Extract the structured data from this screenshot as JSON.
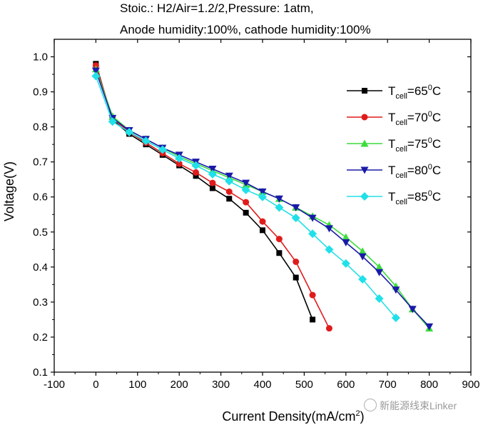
{
  "chart_data": {
    "type": "line",
    "title_lines": [
      "Stoic.: H2/Air=1.2/2,Pressure: 1atm,",
      "Anode humidity:100%, cathode humidity:100%"
    ],
    "xlabel": "Current Density(mA/cm",
    "xlabel_sup": "2",
    "xlabel_end": ")",
    "ylabel": "Voltage(V)",
    "xlim": [
      -100,
      900
    ],
    "ylim": [
      0.1,
      1.05
    ],
    "xticks": [
      -100,
      0,
      100,
      200,
      300,
      400,
      500,
      600,
      700,
      800,
      900
    ],
    "yticks": [
      0.1,
      0.2,
      0.3,
      0.4,
      0.5,
      0.6,
      0.7,
      0.8,
      0.9,
      1.0
    ],
    "ytick_labels": [
      "0.1",
      "0.2",
      "0.3",
      "0.4",
      "0.5",
      "0.6",
      "0.7",
      "0.8",
      "0.9",
      "1.0"
    ],
    "legend_position": "top-right",
    "series": [
      {
        "name": "T_cell=65°C",
        "label_main": "T",
        "label_sub": "cell",
        "label_rest": "=65",
        "label_sup": "0",
        "label_end": "C",
        "color": "#000000",
        "marker": "square",
        "x": [
          0,
          40,
          80,
          120,
          160,
          200,
          240,
          280,
          320,
          360,
          400,
          440,
          480,
          520
        ],
        "y": [
          0.98,
          0.82,
          0.78,
          0.75,
          0.72,
          0.69,
          0.66,
          0.625,
          0.595,
          0.555,
          0.505,
          0.44,
          0.37,
          0.25
        ]
      },
      {
        "name": "T_cell=70°C",
        "label_main": "T",
        "label_sub": "cell",
        "label_rest": "=70",
        "label_sup": "0",
        "label_end": "C",
        "color": "#e01b1b",
        "marker": "circle",
        "x": [
          0,
          40,
          80,
          120,
          160,
          200,
          240,
          280,
          320,
          360,
          400,
          440,
          480,
          520,
          560
        ],
        "y": [
          0.975,
          0.825,
          0.785,
          0.755,
          0.725,
          0.695,
          0.67,
          0.64,
          0.615,
          0.585,
          0.53,
          0.48,
          0.415,
          0.32,
          0.225
        ]
      },
      {
        "name": "T_cell=75°C",
        "label_main": "T",
        "label_sub": "cell",
        "label_rest": "=75",
        "label_sup": "0",
        "label_end": "C",
        "color": "#3cdc3c",
        "marker": "triangle-up",
        "x": [
          0,
          40,
          80,
          120,
          160,
          200,
          240,
          280,
          320,
          360,
          400,
          440,
          480,
          520,
          560,
          600,
          640,
          680,
          720,
          760,
          800
        ],
        "y": [
          0.965,
          0.83,
          0.79,
          0.765,
          0.74,
          0.715,
          0.695,
          0.675,
          0.655,
          0.635,
          0.615,
          0.595,
          0.57,
          0.545,
          0.52,
          0.485,
          0.445,
          0.4,
          0.345,
          0.28,
          0.225
        ]
      },
      {
        "name": "T_cell=80°C",
        "label_main": "T",
        "label_sub": "cell",
        "label_rest": "=80",
        "label_sup": "0",
        "label_end": "C",
        "color": "#1a1aa8",
        "marker": "triangle-down",
        "x": [
          0,
          40,
          80,
          120,
          160,
          200,
          240,
          280,
          320,
          360,
          400,
          440,
          480,
          520,
          560,
          600,
          640,
          680,
          720,
          760,
          800
        ],
        "y": [
          0.96,
          0.825,
          0.79,
          0.765,
          0.74,
          0.72,
          0.7,
          0.68,
          0.66,
          0.64,
          0.615,
          0.595,
          0.57,
          0.54,
          0.51,
          0.47,
          0.43,
          0.385,
          0.335,
          0.28,
          0.23
        ]
      },
      {
        "name": "T_cell=85°C",
        "label_main": "T",
        "label_sub": "cell",
        "label_rest": "=85",
        "label_sup": "0",
        "label_end": "C",
        "color": "#20e0e8",
        "marker": "diamond",
        "x": [
          0,
          40,
          80,
          120,
          160,
          200,
          240,
          280,
          320,
          360,
          400,
          440,
          480,
          520,
          560,
          600,
          640,
          680,
          720
        ],
        "y": [
          0.945,
          0.815,
          0.785,
          0.76,
          0.735,
          0.71,
          0.69,
          0.665,
          0.645,
          0.62,
          0.6,
          0.57,
          0.54,
          0.495,
          0.45,
          0.41,
          0.365,
          0.31,
          0.255
        ]
      }
    ]
  },
  "watermark": "新能源线束Linker"
}
